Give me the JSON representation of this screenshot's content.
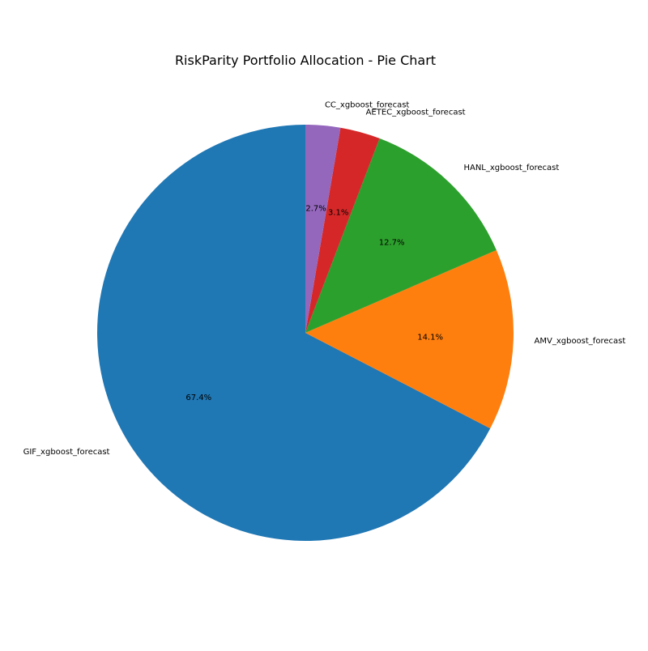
{
  "chart_data": {
    "type": "pie",
    "title": "RiskParity Portfolio Allocation - Pie Chart",
    "start_angle_deg": 90,
    "direction": "counterclockwise",
    "slices": [
      {
        "label": "GIF_xgboost_forecast",
        "value": 67.4,
        "pct_label": "67.4%",
        "color": "#1f77b4"
      },
      {
        "label": "AMV_xgboost_forecast",
        "value": 14.1,
        "pct_label": "14.1%",
        "color": "#ff7f0e"
      },
      {
        "label": "HANL_xgboost_forecast",
        "value": 12.7,
        "pct_label": "12.7%",
        "color": "#2ca02c"
      },
      {
        "label": "AETEC_xgboost_forecast",
        "value": 3.1,
        "pct_label": "3.1%",
        "color": "#d62728"
      },
      {
        "label": "CC_xgboost_forecast",
        "value": 2.7,
        "pct_label": "2.7%",
        "color": "#9467bd"
      }
    ]
  }
}
